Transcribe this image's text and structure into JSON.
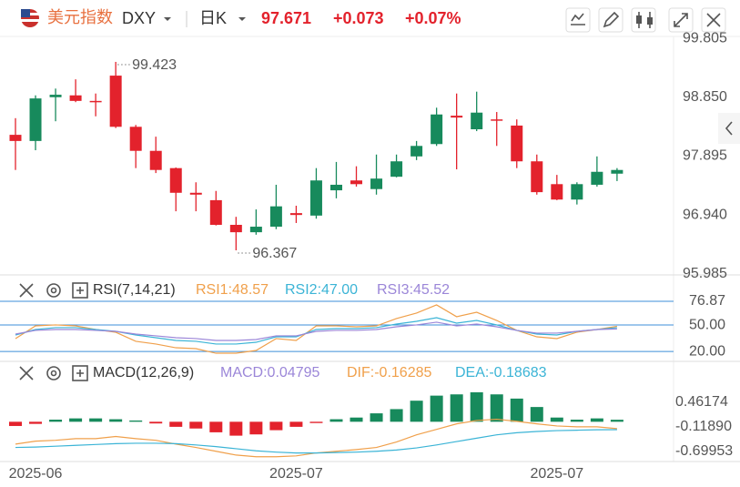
{
  "header": {
    "name": "美元指数",
    "symbol": "DXY",
    "period": "日K",
    "price": "97.671",
    "change": "+0.073",
    "change_pct": "+0.07%"
  },
  "chart_data": [
    {
      "type": "candlestick",
      "categories": [
        null,
        "2025-06",
        null,
        null,
        null,
        null,
        null,
        null,
        null,
        null,
        null,
        null,
        null,
        null,
        "2025-07",
        null,
        null,
        null,
        null,
        null,
        null,
        null,
        null,
        null,
        null,
        null,
        null,
        "2025-07",
        null,
        null,
        null
      ],
      "open": [
        98.24,
        98.14,
        98.85,
        98.88,
        98.79,
        99.2,
        98.37,
        97.98,
        97.7,
        97.3,
        97.18,
        96.78,
        96.66,
        96.75,
        96.97,
        96.93,
        97.34,
        97.5,
        97.36,
        97.56,
        97.89,
        98.09,
        98.55,
        98.33,
        98.49,
        98.39,
        97.81,
        97.44,
        97.19,
        97.43,
        97.61
      ],
      "high": [
        98.51,
        98.88,
        98.99,
        99.14,
        98.91,
        99.423,
        98.4,
        98.21,
        97.71,
        97.47,
        97.33,
        96.91,
        97.03,
        97.43,
        97.09,
        97.7,
        97.8,
        97.73,
        97.92,
        97.92,
        98.14,
        98.68,
        98.91,
        98.94,
        98.61,
        98.49,
        97.92,
        97.59,
        97.47,
        97.89,
        97.7
      ],
      "low": [
        97.67,
        97.99,
        98.46,
        98.77,
        98.54,
        98.35,
        97.7,
        97.62,
        97.0,
        97.0,
        96.77,
        96.367,
        96.62,
        96.71,
        96.81,
        96.88,
        97.21,
        97.4,
        97.27,
        97.55,
        97.83,
        98.06,
        97.68,
        98.3,
        98.06,
        97.7,
        97.27,
        97.18,
        97.11,
        97.4,
        97.49
      ],
      "close": [
        98.14,
        98.83,
        98.89,
        98.79,
        98.77,
        98.37,
        97.98,
        97.67,
        97.3,
        97.27,
        96.78,
        96.66,
        96.75,
        97.08,
        96.94,
        97.5,
        97.43,
        97.44,
        97.53,
        97.81,
        98.06,
        98.57,
        98.52,
        98.6,
        98.48,
        97.81,
        97.31,
        97.19,
        97.44,
        97.64,
        97.67
      ],
      "up_color": "#178a5c",
      "down_color": "#e3222c",
      "ylim": [
        95.968,
        99.836
      ],
      "yticks": [
        99.805,
        {
          "value": 98.85,
          "label": "98.850"
        },
        97.895,
        {
          "value": 96.94,
          "label": "96.940"
        },
        95.985
      ]
    },
    {
      "type": "line",
      "title": "RSI(7,14,21)",
      "ylim": [
        17,
        80
      ],
      "yticks": [
        {
          "value": 76.87,
          "label": "76.87"
        },
        {
          "value": 50,
          "label": "50.00"
        },
        {
          "value": 20,
          "label": "20.00"
        }
      ],
      "series": [
        {
          "name": "RSI1:48.57",
          "color": "#f0a04b",
          "values": [
            34.6,
            49.0,
            50.1,
            49.0,
            44.9,
            41.8,
            31.5,
            28.4,
            24.2,
            23.2,
            18.0,
            18.0,
            21.1,
            34.6,
            32.5,
            49.0,
            49.0,
            48.0,
            49.0,
            57.3,
            63.5,
            72.8,
            59.4,
            64.5,
            55.2,
            43.9,
            36.6,
            34.6,
            41.8,
            44.9,
            48.57
          ]
        },
        {
          "name": "RSI2:47.00",
          "color": "#3bb4d6",
          "values": [
            38.7,
            44.9,
            47.0,
            47.0,
            44.9,
            42.8,
            38.7,
            35.6,
            32.5,
            31.5,
            28.4,
            28.4,
            30.4,
            36.6,
            36.6,
            44.9,
            45.9,
            45.9,
            47.0,
            51.1,
            54.2,
            58.3,
            52.1,
            55.2,
            50.1,
            43.9,
            39.7,
            38.7,
            42.8,
            44.9,
            47.0
          ]
        },
        {
          "name": "RSI3:45.52",
          "color": "#9b86d8",
          "values": [
            39.7,
            43.9,
            44.9,
            44.9,
            43.9,
            42.8,
            39.7,
            37.7,
            35.6,
            34.6,
            32.5,
            32.5,
            33.5,
            37.7,
            37.7,
            42.8,
            43.9,
            43.9,
            44.9,
            48.0,
            50.1,
            53.2,
            49.0,
            51.1,
            48.0,
            43.9,
            40.8,
            40.8,
            42.8,
            44.9,
            45.52
          ]
        }
      ]
    },
    {
      "type": "bar",
      "title": "MACD(12,26,9)",
      "ylim": [
        -0.9,
        0.72
      ],
      "yticks": [
        0.46174,
        {
          "value": -0.1189,
          "label": "-0.11890"
        },
        -0.69953
      ],
      "up_color": "#178a5c",
      "down_color": "#e3222c",
      "series": [
        {
          "name": "MACD:0.04795",
          "type": "bar",
          "color": "#9b86d8",
          "values": [
            -0.1,
            -0.05,
            0.05,
            0.08,
            0.08,
            0.06,
            0.03,
            -0.04,
            -0.12,
            -0.16,
            -0.25,
            -0.33,
            -0.3,
            -0.2,
            -0.12,
            -0.03,
            0.06,
            0.1,
            0.2,
            0.3,
            0.5,
            0.62,
            0.65,
            0.7,
            0.65,
            0.55,
            0.35,
            0.1,
            0.05,
            0.08,
            0.04795
          ]
        },
        {
          "name": "DIF:-0.16285",
          "type": "line",
          "color": "#f0a04b",
          "values": [
            -0.53,
            -0.46,
            -0.44,
            -0.4,
            -0.4,
            -0.35,
            -0.4,
            -0.44,
            -0.53,
            -0.61,
            -0.7,
            -0.79,
            -0.83,
            -0.83,
            -0.81,
            -0.74,
            -0.7,
            -0.66,
            -0.61,
            -0.48,
            -0.31,
            -0.18,
            -0.05,
            0.03,
            0.06,
            0.01,
            -0.05,
            -0.1,
            -0.12,
            -0.12,
            -0.16285
          ]
        },
        {
          "name": "DEA:-0.18683",
          "type": "line",
          "color": "#3bb4d6",
          "values": [
            -0.61,
            -0.6,
            -0.58,
            -0.56,
            -0.54,
            -0.52,
            -0.51,
            -0.51,
            -0.52,
            -0.55,
            -0.59,
            -0.64,
            -0.69,
            -0.72,
            -0.74,
            -0.74,
            -0.73,
            -0.72,
            -0.7,
            -0.67,
            -0.62,
            -0.55,
            -0.47,
            -0.39,
            -0.31,
            -0.26,
            -0.23,
            -0.21,
            -0.2,
            -0.19,
            -0.18683
          ]
        }
      ]
    }
  ]
}
